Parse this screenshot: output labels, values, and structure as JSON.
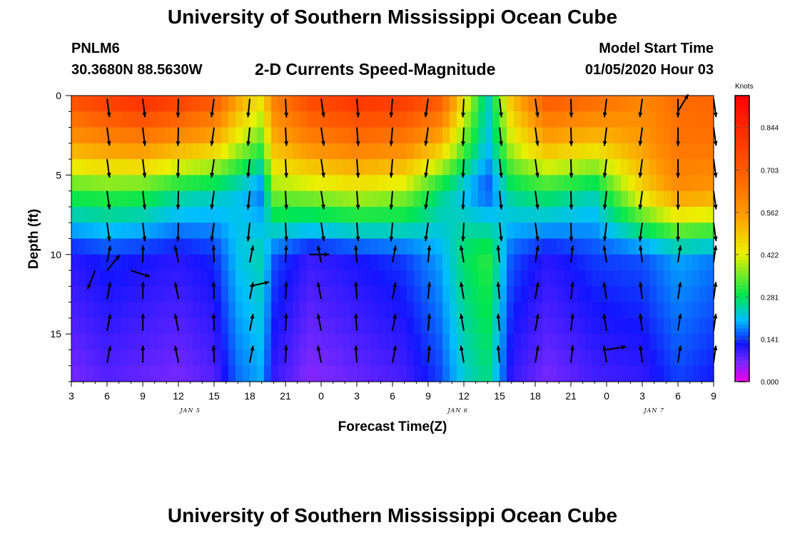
{
  "header": {
    "title": "University of Southern Mississippi Ocean Cube",
    "station": "PNLM6",
    "coords": "30.3680N 88.5630W",
    "plot_title": "2-D Currents Speed-Magnitude",
    "model_label": "Model Start Time",
    "model_time": "01/05/2020 Hour 03"
  },
  "footer": {
    "title": "University of Southern Mississippi Ocean Cube"
  },
  "chart_data": {
    "type": "heatmap",
    "title": "2-D Currents Speed-Magnitude",
    "xlabel": "Forecast Time(Z)",
    "ylabel": "Depth (ft)",
    "x_range_hours": [
      0,
      54
    ],
    "y_range_ft": [
      0,
      18
    ],
    "xticks": [
      "3",
      "6",
      "9",
      "12",
      "15",
      "18",
      "21",
      "0",
      "3",
      "6",
      "9",
      "12",
      "15",
      "18",
      "21",
      "0",
      "3",
      "6",
      "9"
    ],
    "yticks": [
      "0",
      "5",
      "10",
      "15"
    ],
    "yticks_values": [
      0,
      5,
      10,
      15
    ],
    "day_labels": [
      {
        "text": "JAN 5",
        "hour": 10
      },
      {
        "text": "JAN 6",
        "hour": 32.5
      },
      {
        "text": "JAN 7",
        "hour": 49
      }
    ],
    "colorbar": {
      "unit": "Knots",
      "min": 0.0,
      "max": 0.95,
      "ticks": [
        "0.844",
        "0.703",
        "0.562",
        "0.422",
        "0.281",
        "0.141",
        "0.000"
      ],
      "tick_values": [
        0.844,
        0.703,
        0.562,
        0.422,
        0.281,
        0.141,
        0.0
      ]
    },
    "depth_levels_ft": [
      0.5,
      1.5,
      2.5,
      3.5,
      4.5,
      5.5,
      6.5,
      7.5,
      8.5,
      9.5,
      10.5,
      11.5,
      12.5,
      13.5,
      14.5,
      15.5,
      16.5,
      17.5
    ],
    "time_profiles": [
      {
        "hour": 0,
        "surface": 0.74,
        "d5": 0.35,
        "deep": 0.06
      },
      {
        "hour": 3,
        "surface": 0.8,
        "d5": 0.36,
        "deep": 0.08
      },
      {
        "hour": 6,
        "surface": 0.84,
        "d5": 0.35,
        "deep": 0.07
      },
      {
        "hour": 9,
        "surface": 0.8,
        "d5": 0.3,
        "deep": 0.06
      },
      {
        "hour": 12,
        "surface": 0.73,
        "d5": 0.28,
        "deep": 0.08
      },
      {
        "hour": 14,
        "surface": 0.55,
        "d5": 0.25,
        "deep": 0.16
      },
      {
        "hour": 16,
        "surface": 0.45,
        "d5": 0.2,
        "deep": 0.19
      },
      {
        "hour": 17,
        "surface": 0.62,
        "d5": 0.4,
        "deep": 0.1
      },
      {
        "hour": 20,
        "surface": 0.76,
        "d5": 0.42,
        "deep": 0.05
      },
      {
        "hour": 24,
        "surface": 0.82,
        "d5": 0.45,
        "deep": 0.07
      },
      {
        "hour": 28,
        "surface": 0.8,
        "d5": 0.42,
        "deep": 0.09
      },
      {
        "hour": 31,
        "surface": 0.72,
        "d5": 0.3,
        "deep": 0.14
      },
      {
        "hour": 33,
        "surface": 0.45,
        "d5": 0.24,
        "deep": 0.22
      },
      {
        "hour": 35,
        "surface": 0.22,
        "d5": 0.18,
        "deep": 0.26
      },
      {
        "hour": 37,
        "surface": 0.5,
        "d5": 0.3,
        "deep": 0.1
      },
      {
        "hour": 40,
        "surface": 0.72,
        "d5": 0.33,
        "deep": 0.06
      },
      {
        "hour": 44,
        "surface": 0.68,
        "d5": 0.28,
        "deep": 0.09
      },
      {
        "hour": 48,
        "surface": 0.6,
        "d5": 0.5,
        "deep": 0.1
      },
      {
        "hour": 51,
        "surface": 0.66,
        "d5": 0.62,
        "deep": 0.14
      },
      {
        "hour": 54,
        "surface": 0.68,
        "d5": 0.6,
        "deep": 0.12
      }
    ],
    "vectors": [
      {
        "hour": 2,
        "depth": 11,
        "u": -0.4,
        "v": 1.0
      },
      {
        "hour": 3,
        "depth": 11,
        "u": 0.5,
        "v": -0.6
      },
      {
        "hour": 5,
        "depth": 11,
        "u": 0.6,
        "v": 0.2
      },
      {
        "hour": 20,
        "depth": 10,
        "u": 1.0,
        "v": 0.0
      },
      {
        "hour": 15,
        "depth": 12,
        "u": 0.9,
        "v": -0.2
      },
      {
        "hour": 45,
        "depth": 16,
        "u": 0.9,
        "v": -0.15
      },
      {
        "hour": 51,
        "depth": 1,
        "u": 0.3,
        "v": -0.5
      }
    ]
  }
}
